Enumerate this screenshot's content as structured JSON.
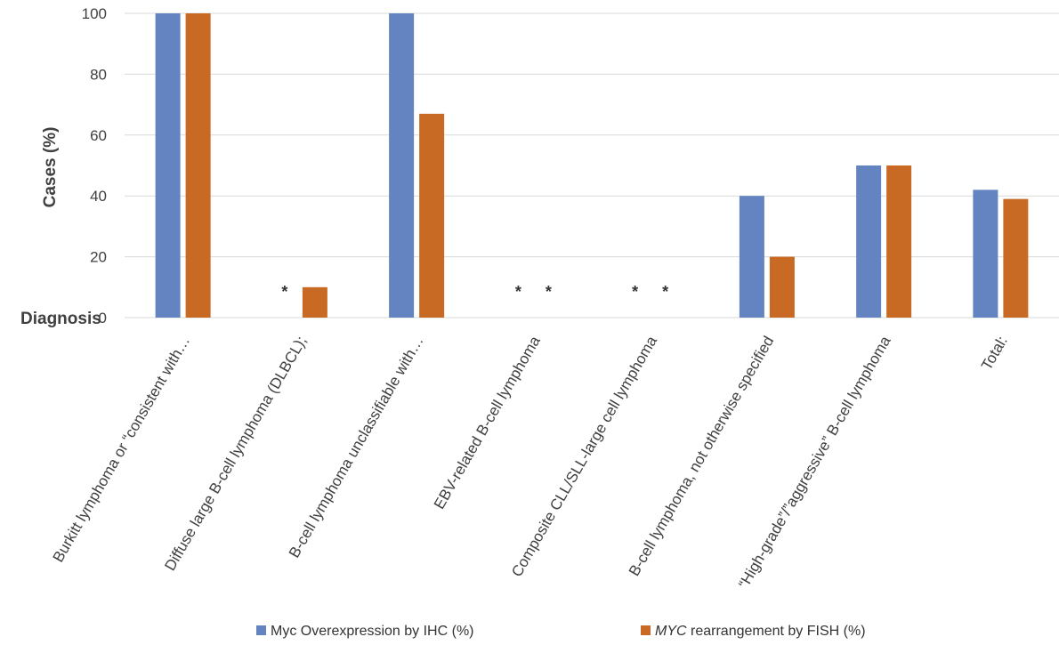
{
  "chart_data": {
    "type": "bar",
    "title": "",
    "ylabel": "Cases (%)",
    "xlabel": "Diagnosis",
    "ylim": [
      0,
      100
    ],
    "yticks": [
      0,
      20,
      40,
      60,
      80,
      100
    ],
    "grid": true,
    "legend_position": "bottom",
    "categories": [
      "Burkitt lymphoma or “consistent with…",
      "Diffuse large B-cell lymphoma (DLBCL);",
      "B-cell lymphoma unclassifiable with…",
      "EBV-related B-cell lymphoma",
      "Composite CLL/SLL-large cell lymphoma",
      "B-cell lymphoma, not otherwise specified",
      "“High-grade”/”aggressive” B-cell lymphoma",
      "Total:"
    ],
    "series": [
      {
        "name": "Myc Overexpression by IHC (%)",
        "name_prefix": "",
        "name_italic": "",
        "name_suffix": "Myc Overexpression by IHC (%)",
        "color": "#6384c1",
        "values": [
          100,
          0,
          100,
          0,
          0,
          40,
          50,
          42
        ]
      },
      {
        "name": "MYC rearrangement by FISH (%)",
        "name_prefix": "",
        "name_italic": "MYC",
        "name_suffix": " rearrangement by FISH (%)",
        "color": "#c96a24",
        "values": [
          100,
          10,
          67,
          0,
          0,
          20,
          50,
          39
        ]
      }
    ],
    "annotations": [
      {
        "text": "*",
        "category_index": 1,
        "series_index": 0
      },
      {
        "text": "*",
        "category_index": 3,
        "series_index": 0
      },
      {
        "text": "*",
        "category_index": 3,
        "series_index": 1
      },
      {
        "text": "*",
        "category_index": 4,
        "series_index": 0
      },
      {
        "text": "*",
        "category_index": 4,
        "series_index": 1
      }
    ]
  }
}
